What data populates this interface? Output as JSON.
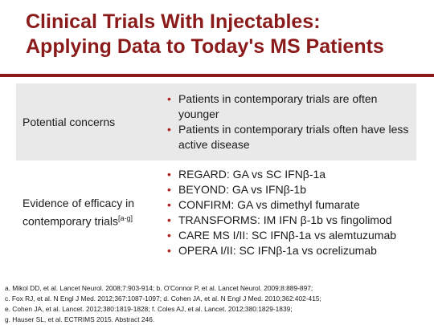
{
  "slide": {
    "title_line1": "Clinical Trials With Injectables:",
    "title_line2": "Applying Data to Today's MS Patients",
    "title_color": "#8b1a1a",
    "bullet_color": "#b32020"
  },
  "table": {
    "rows": [
      {
        "label": "Potential concerns",
        "items": [
          "Patients in contemporary trials are often younger",
          "Patients in contemporary trials often have less active disease"
        ]
      },
      {
        "label_line1": "Evidence of efficacy in",
        "label_line2": "contemporary trials",
        "label_sup": "[a-g]",
        "items": [
          "REGARD: GA vs SC IFNβ-1a",
          "BEYOND: GA vs IFNβ-1b",
          "CONFIRM: GA vs dimethyl fumarate",
          "TRANSFORMS: IM IFN β-1b vs fingolimod",
          "CARE MS I/II: SC IFNβ-1a vs alemtuzumab",
          "OPERA I/II: SC IFNβ-1a vs ocrelizumab"
        ]
      }
    ]
  },
  "references": [
    "a. Mikol DD, et al. Lancet Neurol. 2008;7:903-914; b. O'Connor P, et al. Lancet Neurol. 2009;8:889-897;",
    "c. Fox RJ, et al. N Engl J Med. 2012;367:1087-1097; d. Cohen JA, et al. N Engl J Med. 2010;362:402-415;",
    "e. Cohen JA, et al. Lancet. 2012;380:1819-1828; f. Coles AJ, et al. Lancet. 2012;380:1829-1839;",
    "g. Hauser SL, et al. ECTRIMS 2015. Abstract 246."
  ]
}
